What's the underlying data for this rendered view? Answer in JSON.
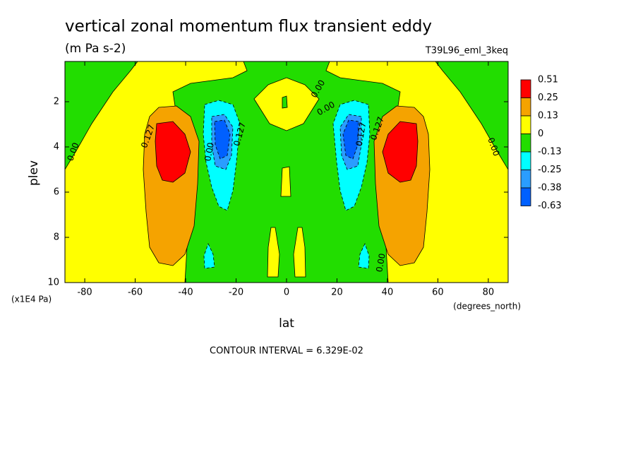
{
  "chart_data": {
    "type": "contour",
    "title": "vertical zonal momentum flux transient eddy",
    "subtitle": "(m Pa s-2)",
    "dataset": "T39L96_eml_3keq",
    "x_label": "lat",
    "x_units": "(degrees_north)",
    "y_label": "plev",
    "y_units": "(x1E4 Pa)",
    "footnote": "CONTOUR INTERVAL = 6.329E-02",
    "xlim": [
      -87.86,
      87.86
    ],
    "xticks": [
      -80,
      -60,
      -40,
      -20,
      0,
      20,
      40,
      60,
      80
    ],
    "ylim": [
      10,
      0.22
    ],
    "yticks": [
      2,
      4,
      6,
      8,
      10
    ],
    "levels": [
      0.51,
      0.25,
      0.13,
      0,
      -0.13,
      -0.25,
      -0.38,
      -0.63
    ],
    "colors": [
      "#ff0000",
      "#f5a300",
      "#ffff00",
      "#22dd00",
      "#00ffff",
      "#2a9dff",
      "#0060ff"
    ],
    "contour_labels": {
      "positive": "0.127",
      "zero": "0.00"
    }
  }
}
